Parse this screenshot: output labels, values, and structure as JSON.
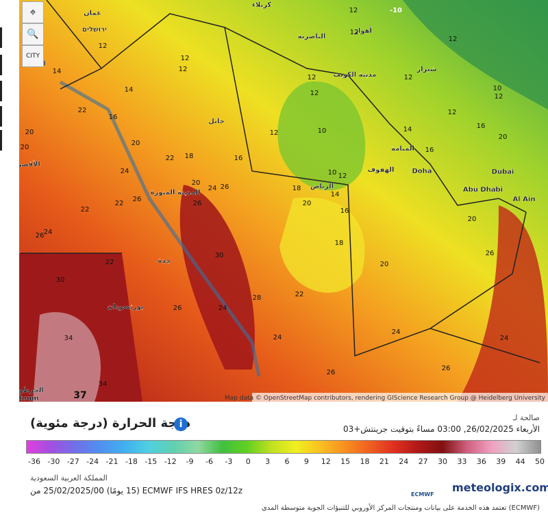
{
  "controls": {
    "city": "CITY"
  },
  "map": {
    "attribution": "Map data © OpenStreetMap contributors, rendering GIScience Research Group @ Heidelberg University",
    "cities": [
      "كربلاء",
      "عمان",
      "ירושלים",
      "الناصرية",
      "أهواز",
      "مدينة الكويت",
      "شيراز",
      "حائل",
      "الرياض",
      "المنامة",
      "الهفوف",
      "Doha",
      "Dubai",
      "Abu Dhabi",
      "Al Ain",
      "المدينة المنورة",
      "جدة",
      "بورتسودان",
      "السو",
      "الأقصر",
      "الخرطوم",
      "toum"
    ],
    "temps": [
      "-10",
      "12",
      "12",
      "12",
      "12",
      "12",
      "14",
      "12",
      "12",
      "12",
      "12",
      "10",
      "12",
      "12",
      "14",
      "22",
      "16",
      "20",
      "20",
      "20",
      "18",
      "22",
      "16",
      "12",
      "10",
      "10",
      "12",
      "16",
      "20",
      "14",
      "16",
      "18",
      "14",
      "20",
      "16",
      "20",
      "24",
      "26",
      "22",
      "26",
      "24",
      "22",
      "26",
      "24",
      "26",
      "22",
      "18",
      "20",
      "20",
      "26",
      "22",
      "24",
      "24",
      "30",
      "28",
      "26",
      "24",
      "30",
      "34",
      "37",
      "26",
      "26",
      "24",
      "34"
    ]
  },
  "panel": {
    "valid_label": "صالحة لـ",
    "valid_time": "الأربعاء 26/02/2025, 03:00 مساءً بتوقيت جرينتش+03",
    "title": "درجة الحرارة (درجة مئوية)",
    "scale": [
      -36,
      -30,
      -27,
      -24,
      -21,
      -18,
      -15,
      -12,
      -9,
      -6,
      -3,
      0,
      3,
      6,
      9,
      12,
      15,
      18,
      21,
      24,
      27,
      30,
      33,
      36,
      39,
      44,
      50
    ],
    "region": "المملكة العربية السعودية",
    "model": "ECMWF IFS HRES 0z/12z (15 يومًا) 25/02/2025/00 من",
    "ecmwf": "ECMWF",
    "brand": "meteologix.com",
    "footer": "(ECMWF) تعتمد هذه الخدمة على بيانات ومنتجات المركز الأوروبي للتنبؤات الجوية متوسطة المدى"
  }
}
